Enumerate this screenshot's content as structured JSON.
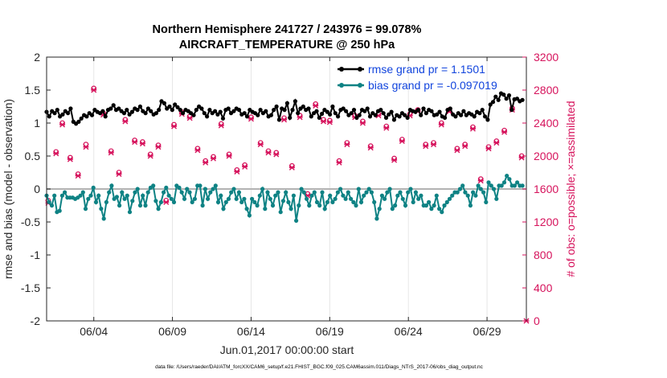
{
  "chart_data": {
    "type": "line",
    "title_line1": "Northern Hemisphere 241727 / 243976 = 99.078%",
    "title_line2": "AIRCRAFT_TEMPERATURE @ 250 hPa",
    "xlabel": "Jun.01,2017 00:00:00 start",
    "ylabel_left": "rmse and bias (model - observation)",
    "ylabel_right": "# of obs: o=possible; ×=assimilated",
    "footnote": "data file: /Users/raeder/DAI/ATM_forcXX/CAM6_setup/f.e21.FHIST_BGC.f09_025.CAM6assim.011/Diags_NTrS_2017-06/obs_diag_output.nc",
    "xlim": [
      1,
      31.5
    ],
    "ylim_left": [
      -2,
      2
    ],
    "ylim_right": [
      0,
      3200
    ],
    "x_tick_values": [
      4,
      9,
      14,
      19,
      24,
      29
    ],
    "x_tick_labels": [
      "06/04",
      "06/09",
      "06/14",
      "06/19",
      "06/24",
      "06/29"
    ],
    "y_left_ticks": [
      "2",
      "1.5",
      "1",
      "0.5",
      "0",
      "-0.5",
      "-1",
      "-1.5",
      "-2"
    ],
    "y_left_tick_values": [
      2,
      1.5,
      1,
      0.5,
      0,
      -0.5,
      -1,
      -1.5,
      -2
    ],
    "y_right_ticks": [
      "3200",
      "2800",
      "2400",
      "2000",
      "1600",
      "1200",
      "800",
      "400",
      "0"
    ],
    "y_right_tick_values": [
      3200,
      2800,
      2400,
      2000,
      1600,
      1200,
      800,
      400,
      0
    ],
    "legend": {
      "position": "top-right",
      "entries": [
        "rmse grand pr = 1.1501",
        "bias grand pr = -0.097019"
      ]
    },
    "colors": {
      "rmse": "#000000",
      "bias": "#0e8284",
      "obs": "#d6135c",
      "zero": "#b3b3b3",
      "legend_text": "#1144dd"
    },
    "series": [
      {
        "name": "rmse",
        "values": [
          1.17,
          1.1,
          1.18,
          1.15,
          1.2,
          1.1,
          1.13,
          1.18,
          1.15,
          1.22,
          1.02,
          0.99,
          1.02,
          1.07,
          1.12,
          1.1,
          1.15,
          1.12,
          1.2,
          1.17,
          1.15,
          1.18,
          1.1,
          1.2,
          1.22,
          1.27,
          1.2,
          1.22,
          1.18,
          1.15,
          1.2,
          1.13,
          1.17,
          1.22,
          1.2,
          1.25,
          1.18,
          1.15,
          1.22,
          1.18,
          1.13,
          1.15,
          1.2,
          1.33,
          1.3,
          1.22,
          1.25,
          1.2,
          1.28,
          1.24,
          1.2,
          1.15,
          1.2,
          1.18,
          1.15,
          1.12,
          1.2,
          1.25,
          1.22,
          1.15,
          1.1,
          1.2,
          1.15,
          1.18,
          1.13,
          1.17,
          1.07,
          1.2,
          1.22,
          1.15,
          1.18,
          1.22,
          1.2,
          1.13,
          1.15,
          1.1,
          1.2,
          1.17,
          1.15,
          1.12,
          1.2,
          1.15,
          1.18,
          1.1,
          1.12,
          1.2,
          1.25,
          1.05,
          1.22,
          1.2,
          1.3,
          1.08,
          1.2,
          1.33,
          1.15,
          1.22,
          1.25,
          1.2,
          1.22,
          1.1,
          1.15,
          1.18,
          1.08,
          1.14,
          1.2,
          1.17,
          1.13,
          1.25,
          1.15,
          1.1,
          1.2,
          1.22,
          1.18,
          1.12,
          1.15,
          1.2,
          1.08,
          1.12,
          1.2,
          1.18,
          1.22,
          1.1,
          1.15,
          1.12,
          1.18,
          1.2,
          1.15,
          1.08,
          1.13,
          1.17,
          1.05,
          1.12,
          1.1,
          1.15,
          1.12,
          1.08,
          1.2,
          1.18,
          1.17,
          1.2,
          1.12,
          1.22,
          1.15,
          1.2,
          1.18,
          1.12,
          1.13,
          1.17,
          1.1,
          1.08,
          1.2,
          1.22,
          1.13,
          1.1,
          1.15,
          1.12,
          1.18,
          1.12,
          1.15,
          1.13,
          1.1,
          1.17,
          1.15,
          1.2,
          1.1,
          1.05,
          1.28,
          1.32,
          1.4,
          1.35,
          1.45,
          1.43,
          1.37,
          1.42,
          1.2,
          1.36,
          1.37,
          1.33,
          1.35
        ]
      },
      {
        "name": "bias",
        "values": [
          -0.1,
          -0.2,
          -0.25,
          -0.1,
          -0.35,
          -0.33,
          -0.1,
          -0.05,
          -0.13,
          -0.13,
          -0.13,
          -0.15,
          -0.13,
          -0.1,
          -0.05,
          -0.3,
          -0.15,
          -0.1,
          0.02,
          -0.2,
          -0.1,
          -0.3,
          -0.45,
          -0.2,
          -0.05,
          0.05,
          -0.15,
          -0.12,
          -0.25,
          -0.05,
          -0.15,
          -0.1,
          -0.35,
          -0.18,
          -0.05,
          0.0,
          -0.25,
          -0.1,
          -0.25,
          -0.05,
          0.02,
          0.05,
          -0.18,
          -0.3,
          -0.2,
          -0.05,
          0.02,
          -0.1,
          -0.15,
          -0.2,
          0.05,
          0.02,
          -0.05,
          -0.15,
          0.0,
          -0.05,
          -0.2,
          -0.15,
          0.05,
          0.05,
          -0.25,
          0.0,
          -0.15,
          -0.05,
          0.0,
          0.05,
          -0.2,
          -0.1,
          -0.3,
          -0.2,
          -0.15,
          -0.05,
          0.0,
          -0.15,
          -0.05,
          -0.2,
          -0.15,
          -0.3,
          -0.4,
          -0.15,
          -0.2,
          -0.25,
          -0.1,
          0.0,
          -0.3,
          -0.05,
          -0.15,
          -0.25,
          -0.1,
          -0.05,
          -0.35,
          -0.18,
          -0.05,
          -0.2,
          -0.3,
          -0.1,
          -0.48,
          -0.25,
          0.0,
          -0.05,
          -0.15,
          -0.25,
          -0.1,
          -0.05,
          -0.2,
          -0.25,
          -0.05,
          -0.3,
          -0.2,
          -0.1,
          -0.2,
          -0.15,
          -0.05,
          0.0,
          -0.1,
          -0.15,
          -0.05,
          -0.15,
          -0.2,
          -0.25,
          0.0,
          -0.2,
          -0.1,
          -0.05,
          0.0,
          -0.05,
          -0.2,
          -0.45,
          -0.3,
          -0.1,
          -0.15,
          -0.05,
          0.0,
          -0.3,
          -0.25,
          -0.1,
          -0.05,
          -0.15,
          -0.25,
          -0.05,
          0.0,
          -0.2,
          -0.05,
          -0.15,
          -0.1,
          -0.25,
          -0.25,
          -0.2,
          -0.3,
          -0.25,
          -0.1,
          -0.3,
          -0.35,
          -0.25,
          -0.2,
          -0.15,
          -0.1,
          -0.05,
          -0.05,
          0.0,
          0.05,
          -0.05,
          -0.1,
          -0.25,
          -0.05,
          -0.1,
          0.05,
          0.0,
          -0.05,
          -0.2,
          0.1,
          0.05,
          0.0,
          -0.15,
          0.05,
          0.05,
          0.1,
          0.2,
          0.15,
          0.05,
          0.05,
          0.1,
          0.05,
          0.05
        ]
      }
    ],
    "obs_possible": [
      [
        1.1,
        1460
      ],
      [
        1.6,
        2050
      ],
      [
        2.0,
        2400
      ],
      [
        2.5,
        1980
      ],
      [
        3.0,
        1780
      ],
      [
        3.5,
        2140
      ],
      [
        4.0,
        2820
      ],
      [
        4.6,
        2520
      ],
      [
        5.1,
        2060
      ],
      [
        5.6,
        1800
      ],
      [
        6.0,
        2440
      ],
      [
        6.6,
        2190
      ],
      [
        7.1,
        2170
      ],
      [
        7.6,
        2020
      ],
      [
        8.1,
        2130
      ],
      [
        8.6,
        1460
      ],
      [
        9.1,
        2380
      ],
      [
        9.6,
        2530
      ],
      [
        10.1,
        2480
      ],
      [
        10.6,
        2090
      ],
      [
        11.1,
        1940
      ],
      [
        11.6,
        1990
      ],
      [
        12.1,
        2390
      ],
      [
        12.6,
        2020
      ],
      [
        13.1,
        1830
      ],
      [
        13.6,
        1890
      ],
      [
        14.0,
        2470
      ],
      [
        14.6,
        2160
      ],
      [
        15.1,
        2060
      ],
      [
        15.6,
        2040
      ],
      [
        16.1,
        2460
      ],
      [
        16.6,
        1880
      ],
      [
        17.1,
        2490
      ],
      [
        17.6,
        1540
      ],
      [
        18.1,
        2630
      ],
      [
        18.6,
        2440
      ],
      [
        19.0,
        2430
      ],
      [
        19.6,
        1940
      ],
      [
        20.1,
        2160
      ],
      [
        20.6,
        2490
      ],
      [
        21.1,
        2420
      ],
      [
        21.6,
        2120
      ],
      [
        22.1,
        2510
      ],
      [
        22.6,
        2360
      ],
      [
        23.1,
        1970
      ],
      [
        23.6,
        2200
      ],
      [
        24.1,
        2510
      ],
      [
        24.6,
        2560
      ],
      [
        25.1,
        2140
      ],
      [
        25.6,
        2160
      ],
      [
        26.1,
        2400
      ],
      [
        26.6,
        2560
      ],
      [
        27.1,
        2090
      ],
      [
        27.6,
        2140
      ],
      [
        28.1,
        2350
      ],
      [
        28.6,
        1720
      ],
      [
        29.1,
        2110
      ],
      [
        29.6,
        2180
      ],
      [
        30.1,
        2310
      ],
      [
        30.6,
        2580
      ],
      [
        31.2,
        2000
      ]
    ],
    "obs_assimilated": [
      [
        1.1,
        1430
      ],
      [
        1.6,
        2030
      ],
      [
        2.0,
        2380
      ],
      [
        2.5,
        1960
      ],
      [
        3.0,
        1760
      ],
      [
        3.5,
        2110
      ],
      [
        4.0,
        2800
      ],
      [
        4.6,
        2500
      ],
      [
        5.1,
        2040
      ],
      [
        5.6,
        1780
      ],
      [
        6.0,
        2420
      ],
      [
        6.6,
        2170
      ],
      [
        7.1,
        2150
      ],
      [
        7.6,
        2000
      ],
      [
        8.1,
        2110
      ],
      [
        8.6,
        1440
      ],
      [
        9.1,
        2360
      ],
      [
        9.6,
        2510
      ],
      [
        10.1,
        2460
      ],
      [
        10.6,
        2070
      ],
      [
        11.1,
        1920
      ],
      [
        11.6,
        1970
      ],
      [
        12.1,
        2370
      ],
      [
        12.6,
        2000
      ],
      [
        13.1,
        1810
      ],
      [
        13.6,
        1870
      ],
      [
        14.0,
        2450
      ],
      [
        14.6,
        2140
      ],
      [
        15.1,
        2040
      ],
      [
        15.6,
        2020
      ],
      [
        16.1,
        2440
      ],
      [
        16.6,
        1860
      ],
      [
        17.1,
        2470
      ],
      [
        17.6,
        1520
      ],
      [
        18.1,
        2610
      ],
      [
        18.6,
        2420
      ],
      [
        19.0,
        2410
      ],
      [
        19.6,
        1920
      ],
      [
        20.1,
        2140
      ],
      [
        20.6,
        2470
      ],
      [
        21.1,
        2400
      ],
      [
        21.6,
        2100
      ],
      [
        22.1,
        2490
      ],
      [
        22.6,
        2340
      ],
      [
        23.1,
        1950
      ],
      [
        23.6,
        2180
      ],
      [
        24.1,
        2490
      ],
      [
        24.6,
        2540
      ],
      [
        25.1,
        2120
      ],
      [
        25.6,
        2140
      ],
      [
        26.1,
        2380
      ],
      [
        26.6,
        2540
      ],
      [
        27.1,
        2070
      ],
      [
        27.6,
        2120
      ],
      [
        28.1,
        2330
      ],
      [
        28.6,
        1700
      ],
      [
        29.1,
        2090
      ],
      [
        29.6,
        2160
      ],
      [
        30.1,
        2290
      ],
      [
        30.6,
        2560
      ],
      [
        31.2,
        1980
      ],
      [
        31.5,
        0
      ]
    ]
  }
}
